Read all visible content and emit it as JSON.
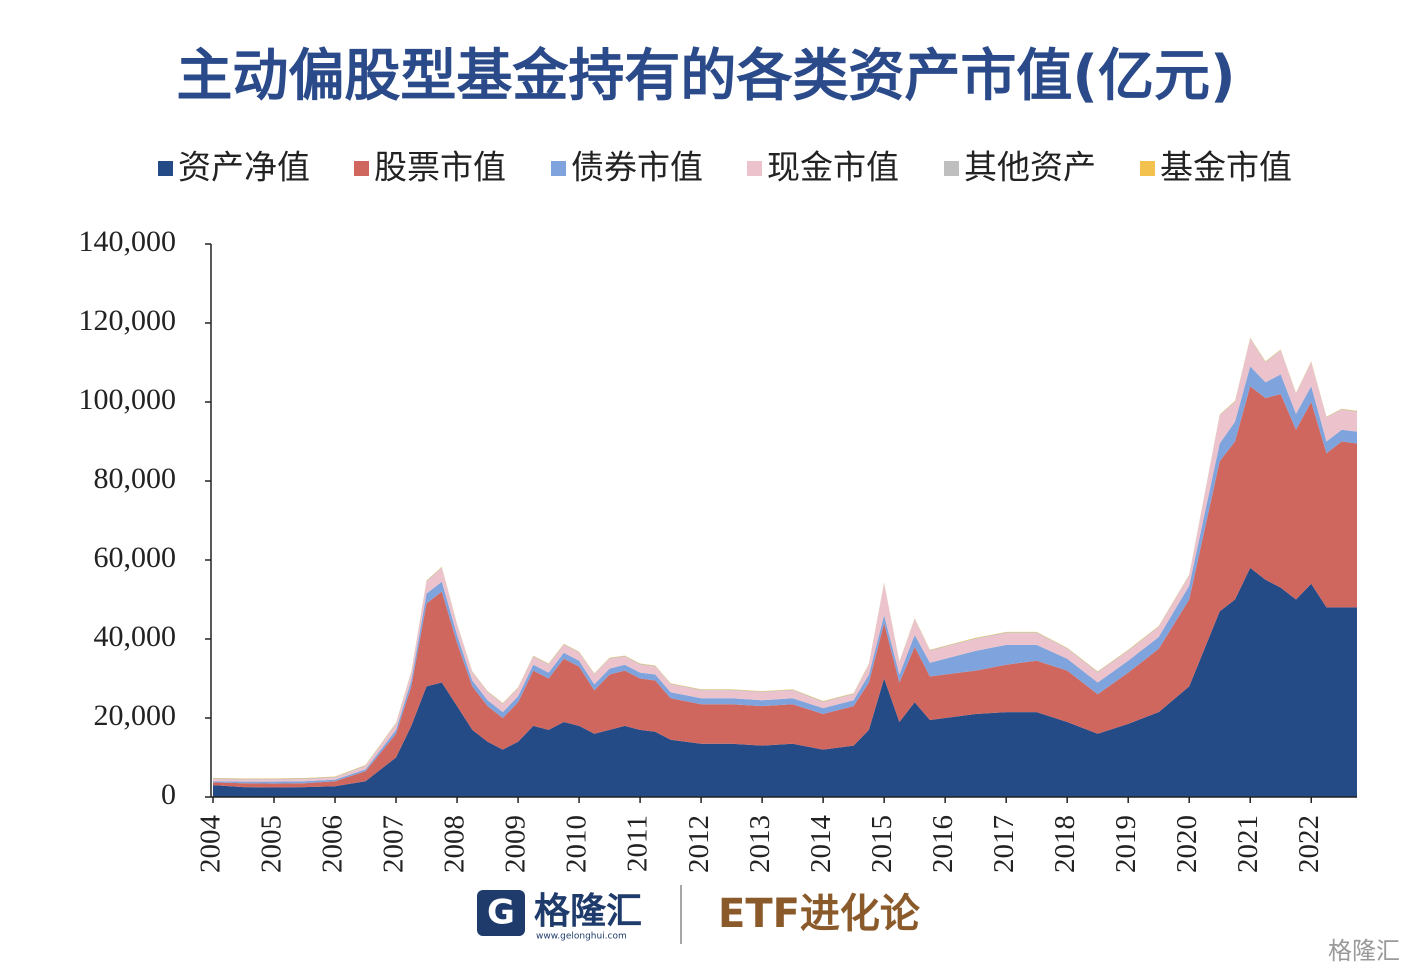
{
  "chart_data": {
    "type": "stacked-area",
    "title": "主动偏股型基金持有的各类资产市值(亿元)",
    "x": [
      2004,
      2004.5,
      2005,
      2005.5,
      2006,
      2006.5,
      2007,
      2007.25,
      2007.5,
      2007.75,
      2008,
      2008.25,
      2008.5,
      2008.75,
      2009,
      2009.25,
      2009.5,
      2009.75,
      2010,
      2010.25,
      2010.5,
      2010.75,
      2011,
      2011.25,
      2011.5,
      2012,
      2012.5,
      2013,
      2013.5,
      2014,
      2014.5,
      2014.75,
      2015,
      2015.25,
      2015.5,
      2015.75,
      2016,
      2016.5,
      2017,
      2017.5,
      2018,
      2018.5,
      2019,
      2019.5,
      2020,
      2020.5,
      2020.75,
      2021,
      2021.25,
      2021.5,
      2021.75,
      2022,
      2022.25,
      2022.5,
      2022.75
    ],
    "series": [
      {
        "name": "资产净值",
        "color": "#254b87",
        "values": [
          3000,
          2500,
          2400,
          2500,
          2700,
          4000,
          10000,
          18000,
          28000,
          29000,
          23000,
          17000,
          14000,
          12000,
          14000,
          18000,
          17000,
          19000,
          18000,
          16000,
          17000,
          18000,
          17000,
          16500,
          14500,
          13500,
          13500,
          13000,
          13500,
          12000,
          13000,
          17000,
          30000,
          19000,
          24000,
          19500,
          20000,
          21000,
          21500,
          21500,
          19000,
          16000,
          18500,
          21500,
          28000,
          47000,
          50000,
          58000,
          55000,
          53000,
          50000,
          54000,
          48000,
          48000,
          48000
        ]
      },
      {
        "name": "股票市值",
        "color": "#d0675f",
        "values": [
          700,
          1000,
          1000,
          1000,
          1300,
          2500,
          6000,
          10000,
          21000,
          23000,
          16000,
          11000,
          9000,
          8000,
          10000,
          14000,
          13000,
          16000,
          15000,
          11000,
          14000,
          14000,
          13000,
          13000,
          10500,
          10000,
          10000,
          10000,
          10000,
          9000,
          10000,
          12000,
          14000,
          10000,
          14000,
          11000,
          11000,
          11000,
          12000,
          13000,
          13000,
          10000,
          13000,
          16000,
          22000,
          38000,
          40000,
          46000,
          46000,
          49000,
          43000,
          46000,
          39000,
          42000,
          41500
        ]
      },
      {
        "name": "债券市值",
        "color": "#7fa3dc",
        "values": [
          300,
          400,
          500,
          500,
          400,
          500,
          1000,
          1500,
          2500,
          2500,
          2000,
          1500,
          1500,
          1500,
          1500,
          1500,
          1500,
          1500,
          1500,
          1500,
          1500,
          1500,
          1500,
          1500,
          1500,
          1500,
          1500,
          1500,
          1500,
          1500,
          1500,
          2000,
          2000,
          2000,
          3000,
          3500,
          4000,
          5000,
          5000,
          4000,
          3000,
          3000,
          3000,
          3000,
          3500,
          4500,
          5000,
          5000,
          4000,
          5000,
          4000,
          4000,
          3000,
          3000,
          3000
        ]
      },
      {
        "name": "现金市值",
        "color": "#ecc3cc",
        "values": [
          500,
          500,
          500,
          500,
          500,
          800,
          1500,
          2000,
          3000,
          3500,
          2500,
          2000,
          2000,
          2000,
          2000,
          2000,
          2000,
          2000,
          2000,
          2500,
          2500,
          2000,
          2000,
          2000,
          2000,
          2000,
          2000,
          2000,
          2000,
          1500,
          1500,
          2500,
          8000,
          3000,
          4000,
          3000,
          3000,
          3000,
          3000,
          3000,
          2500,
          2500,
          2500,
          2500,
          2500,
          7000,
          5000,
          7000,
          5000,
          6000,
          5000,
          6000,
          6000,
          5000,
          5000
        ]
      },
      {
        "name": "其他资产",
        "color": "#bfbfbf",
        "values": [
          200,
          200,
          200,
          200,
          200,
          200,
          200,
          200,
          200,
          200,
          200,
          200,
          200,
          200,
          200,
          200,
          200,
          200,
          200,
          200,
          200,
          200,
          200,
          200,
          200,
          200,
          200,
          200,
          200,
          200,
          200,
          200,
          200,
          200,
          200,
          200,
          200,
          200,
          200,
          200,
          200,
          200,
          200,
          200,
          200,
          200,
          200,
          200,
          200,
          200,
          200,
          200,
          200,
          200,
          200
        ]
      },
      {
        "name": "基金市值",
        "color": "#f2c14e",
        "values": [
          100,
          100,
          100,
          100,
          100,
          100,
          100,
          100,
          100,
          100,
          100,
          100,
          100,
          100,
          100,
          100,
          100,
          100,
          100,
          100,
          100,
          100,
          100,
          100,
          100,
          100,
          100,
          100,
          100,
          100,
          100,
          100,
          100,
          100,
          100,
          100,
          100,
          100,
          100,
          100,
          100,
          100,
          100,
          100,
          100,
          100,
          100,
          100,
          100,
          100,
          100,
          100,
          100,
          100,
          100
        ]
      }
    ],
    "xlim": [
      2004,
      2022.75
    ],
    "xticks": [
      2004,
      2005,
      2006,
      2007,
      2008,
      2009,
      2010,
      2011,
      2012,
      2013,
      2014,
      2015,
      2016,
      2017,
      2018,
      2019,
      2020,
      2021,
      2022
    ],
    "ylim": [
      0,
      140000
    ],
    "yticks": [
      0,
      {
        "value": 20000,
        "label": "20,000"
      },
      {
        "value": 40000,
        "label": "40,000"
      },
      {
        "value": 60000,
        "label": "60,000"
      },
      {
        "value": 80000,
        "label": "80,000"
      },
      {
        "value": 100000,
        "label": "100,000"
      },
      {
        "value": 120000,
        "label": "120,000"
      },
      {
        "value": 140000,
        "label": "140,000"
      }
    ],
    "stacked": true,
    "legend": "top"
  },
  "footer": {
    "logo": "格隆汇",
    "url": "www.gelonghui.com",
    "brand": "ETF进化论",
    "watermark": "格隆汇"
  }
}
